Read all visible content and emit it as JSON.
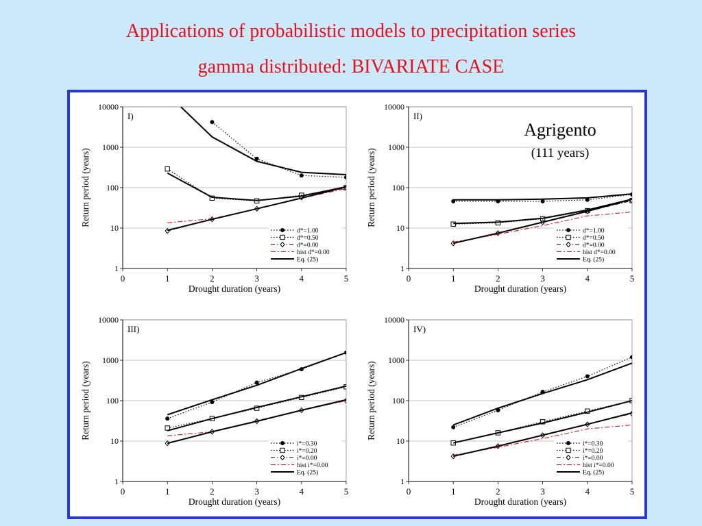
{
  "title_line1": "Applications of probabilistic models to precipitation series",
  "title_line2": "gamma distributed: BIVARIATE CASE",
  "location": {
    "name": "Agrigento",
    "years": "(111 years)"
  },
  "colors": {
    "background": "#cce8fb",
    "title": "#e8101a",
    "frame_border": "#2838d8",
    "hist_line": "#e8101a"
  },
  "chart_data": [
    {
      "type": "line",
      "panel": "I)",
      "xlabel": "Drought duration (years)",
      "ylabel": "Return period (years)",
      "xlim": [
        0,
        5
      ],
      "ylim": [
        1,
        10000
      ],
      "yscale": "log",
      "xticks": [
        "0",
        "1",
        "2",
        "3",
        "4",
        "5"
      ],
      "yticks": [
        "1",
        "10",
        "100",
        "1000",
        "10000"
      ],
      "grid": "horizontal",
      "legend_position": "bottom-right",
      "series": [
        {
          "name": "d*=1.00",
          "style": "dotted",
          "marker": "filled-circle",
          "x": [
            2,
            3,
            4,
            5
          ],
          "y": [
            4200,
            520,
            200,
            180
          ]
        },
        {
          "name": "d*=0.50",
          "style": "dotted",
          "marker": "open-square",
          "x": [
            1,
            2,
            3,
            4,
            5
          ],
          "y": [
            290,
            55,
            47,
            65,
            100
          ]
        },
        {
          "name": "d*=0.00",
          "style": "dashdot",
          "marker": "open-diamond",
          "x": [
            1,
            2,
            3,
            4,
            5
          ],
          "y": [
            8.5,
            16.5,
            30,
            57,
            100
          ]
        },
        {
          "name": "hist d*=0.00",
          "style": "dashdot-red",
          "marker": "none",
          "x": [
            1,
            2,
            3,
            4,
            5
          ],
          "y": [
            13.5,
            17,
            30,
            55,
            95
          ]
        },
        {
          "name": "Eq. (25)",
          "style": "solid",
          "marker": "none",
          "x": [
            1.3,
            2,
            3,
            4,
            5
          ],
          "y": [
            10000,
            1800,
            450,
            240,
            210
          ]
        },
        {
          "name": "Eq. (25)",
          "style": "solid",
          "marker": "none",
          "x": [
            1,
            2,
            3,
            4,
            5
          ],
          "y": [
            230,
            58,
            48,
            62,
            105
          ]
        },
        {
          "name": "Eq. (25)",
          "style": "solid",
          "marker": "none",
          "x": [
            1,
            2,
            3,
            4,
            5
          ],
          "y": [
            8.8,
            16.5,
            30,
            55,
            105
          ]
        }
      ]
    },
    {
      "type": "line",
      "panel": "II)",
      "xlabel": "Drought duration (years)",
      "ylabel": "Return period (years)",
      "xlim": [
        0,
        5
      ],
      "ylim": [
        1,
        10000
      ],
      "yscale": "log",
      "xticks": [
        "0",
        "1",
        "2",
        "3",
        "4",
        "5"
      ],
      "yticks": [
        "1",
        "10",
        "100",
        "1000",
        "10000"
      ],
      "grid": "horizontal",
      "legend_position": "bottom-right",
      "series": [
        {
          "name": "d*=1.00",
          "style": "dotted",
          "marker": "filled-circle",
          "x": [
            1,
            2,
            3,
            4,
            5
          ],
          "y": [
            46,
            46,
            46,
            50,
            68
          ]
        },
        {
          "name": "d*=0.50",
          "style": "dotted",
          "marker": "open-square",
          "x": [
            1,
            2,
            3,
            4,
            5
          ],
          "y": [
            12.5,
            13.5,
            17,
            27,
            48
          ]
        },
        {
          "name": "d*=0.00",
          "style": "dashdot",
          "marker": "open-diamond",
          "x": [
            1,
            2,
            3,
            4,
            5
          ],
          "y": [
            4.2,
            7.5,
            14,
            26,
            48
          ]
        },
        {
          "name": "hist d*=0.00",
          "style": "dashdot-red",
          "marker": "none",
          "x": [
            1,
            2,
            3,
            4,
            5
          ],
          "y": [
            4.5,
            7,
            11.5,
            20,
            25
          ]
        },
        {
          "name": "Eq. (25)",
          "style": "solid",
          "marker": "none",
          "x": [
            1,
            2,
            3,
            4,
            5
          ],
          "y": [
            50,
            50,
            52,
            56,
            70
          ]
        },
        {
          "name": "Eq. (25)",
          "style": "solid",
          "marker": "none",
          "x": [
            1,
            2,
            3,
            4,
            5
          ],
          "y": [
            13,
            14,
            17.5,
            28,
            52
          ]
        },
        {
          "name": "Eq. (25)",
          "style": "solid",
          "marker": "none",
          "x": [
            1,
            2,
            3,
            4,
            5
          ],
          "y": [
            4.2,
            7.5,
            14,
            26,
            52
          ]
        }
      ]
    },
    {
      "type": "line",
      "panel": "III)",
      "xlabel": "Drought duration (years)",
      "ylabel": "Return period (years)",
      "xlim": [
        0,
        5
      ],
      "ylim": [
        1,
        10000
      ],
      "yscale": "log",
      "xticks": [
        "0",
        "1",
        "2",
        "3",
        "4",
        "5"
      ],
      "yticks": [
        "1",
        "10",
        "100",
        "1000",
        "10000"
      ],
      "grid": "horizontal",
      "legend_position": "bottom-right",
      "series": [
        {
          "name": "i*=0.30",
          "style": "dotted",
          "marker": "filled-circle",
          "x": [
            1,
            2,
            3,
            4,
            5
          ],
          "y": [
            36,
            92,
            280,
            600,
            1550
          ]
        },
        {
          "name": "i*=0.20",
          "style": "dotted",
          "marker": "open-square",
          "x": [
            1,
            2,
            3,
            4,
            5
          ],
          "y": [
            21,
            36,
            65,
            120,
            220
          ]
        },
        {
          "name": "i*=0.00",
          "style": "dashdot",
          "marker": "open-diamond",
          "x": [
            1,
            2,
            3,
            4,
            5
          ],
          "y": [
            8.8,
            17,
            31,
            58,
            100
          ]
        },
        {
          "name": "hist i*=0.00",
          "style": "dashdot-red",
          "marker": "none",
          "x": [
            1,
            2,
            3,
            4,
            5
          ],
          "y": [
            13.5,
            17,
            30,
            58,
            100
          ]
        },
        {
          "name": "Eq. (25)",
          "style": "solid",
          "marker": "none",
          "x": [
            1,
            2,
            3,
            4,
            5
          ],
          "y": [
            45,
            105,
            240,
            620,
            1550
          ]
        },
        {
          "name": "Eq. (25)",
          "style": "solid",
          "marker": "none",
          "x": [
            1,
            2,
            3,
            4,
            5
          ],
          "y": [
            18,
            36,
            68,
            125,
            230
          ]
        },
        {
          "name": "Eq. (25)",
          "style": "solid",
          "marker": "none",
          "x": [
            1,
            2,
            3,
            4,
            5
          ],
          "y": [
            8.8,
            17,
            31,
            58,
            105
          ]
        }
      ]
    },
    {
      "type": "line",
      "panel": "IV)",
      "xlabel": "Drought duration (years)",
      "ylabel": "Return period (years)",
      "xlim": [
        0,
        5
      ],
      "ylim": [
        1,
        10000
      ],
      "yscale": "log",
      "xticks": [
        "0",
        "1",
        "2",
        "3",
        "4",
        "5"
      ],
      "yticks": [
        "1",
        "10",
        "100",
        "1000",
        "10000"
      ],
      "grid": "horizontal",
      "legend_position": "bottom-right",
      "series": [
        {
          "name": "i*=0.30",
          "style": "dotted",
          "marker": "filled-circle",
          "x": [
            1,
            2,
            3,
            4,
            5
          ],
          "y": [
            22,
            58,
            165,
            400,
            1200
          ]
        },
        {
          "name": "i*=0.20",
          "style": "dotted",
          "marker": "open-square",
          "x": [
            1,
            2,
            3,
            4,
            5
          ],
          "y": [
            9,
            16,
            30,
            55,
            100
          ]
        },
        {
          "name": "i*=0.00",
          "style": "dashdot",
          "marker": "open-diamond",
          "x": [
            1,
            2,
            3,
            4,
            5
          ],
          "y": [
            4.2,
            7.5,
            14,
            26,
            48
          ]
        },
        {
          "name": "hist i*=0.00",
          "style": "dashdot-red",
          "marker": "none",
          "x": [
            1,
            2,
            3,
            4,
            5
          ],
          "y": [
            4.5,
            7,
            11.5,
            20,
            25
          ]
        },
        {
          "name": "Eq. (25)",
          "style": "solid",
          "marker": "none",
          "x": [
            1,
            2,
            3,
            4,
            5
          ],
          "y": [
            25,
            65,
            150,
            330,
            850
          ]
        },
        {
          "name": "Eq. (25)",
          "style": "solid",
          "marker": "none",
          "x": [
            1,
            2,
            3,
            4,
            5
          ],
          "y": [
            9,
            16,
            28,
            52,
            100
          ]
        },
        {
          "name": "Eq. (25)",
          "style": "solid",
          "marker": "none",
          "x": [
            1,
            2,
            3,
            4,
            5
          ],
          "y": [
            4.2,
            7.5,
            14,
            26,
            50
          ]
        }
      ]
    }
  ]
}
